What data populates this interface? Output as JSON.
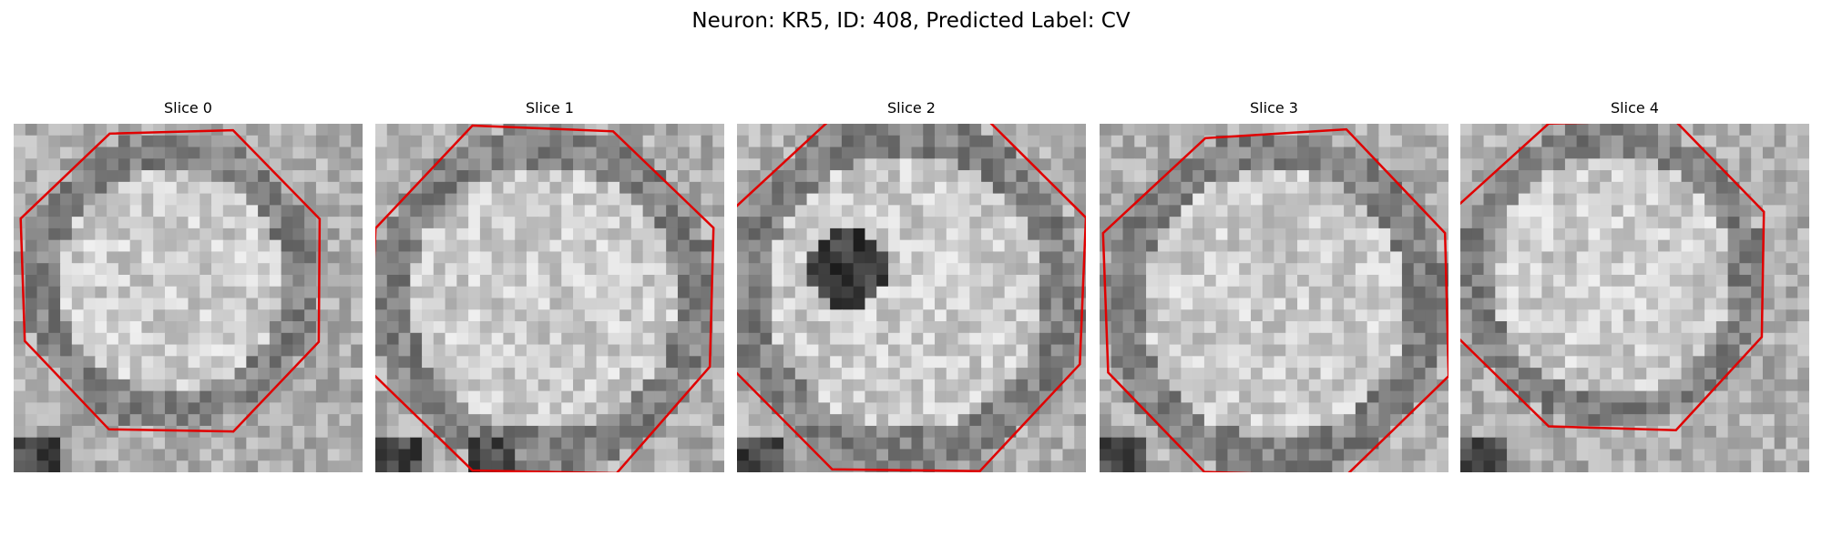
{
  "title": "Neuron: KR5, ID: 408, Predicted Label: CV",
  "panels": [
    {
      "title": "Slice 0"
    },
    {
      "title": "Slice 1"
    },
    {
      "title": "Slice 2"
    },
    {
      "title": "Slice 3"
    },
    {
      "title": "Slice 4"
    }
  ]
}
